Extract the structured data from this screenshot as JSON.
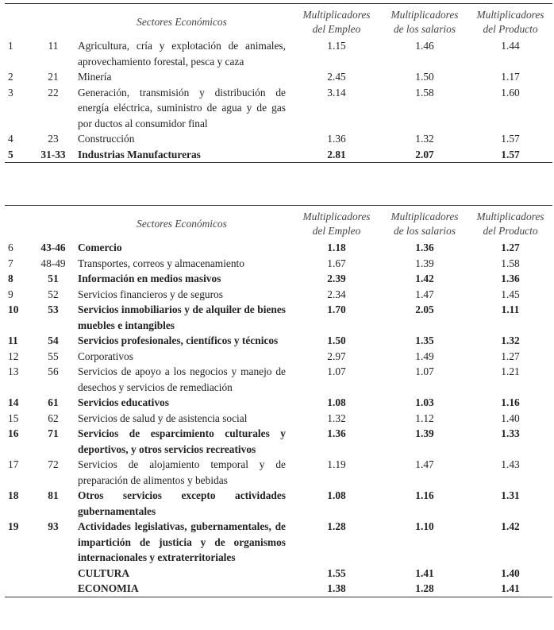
{
  "headers": {
    "sectores": "Sectores Económicos",
    "empleo": [
      "Multiplicadores",
      "del Empleo"
    ],
    "salarios": [
      "Multiplicadores",
      "de los salarios"
    ],
    "producto": [
      "Multiplicadores",
      "del Producto"
    ]
  },
  "table1": [
    {
      "num": "1",
      "code": "11",
      "desc": "Agricultura, cría y explotación de animales, aprovechamiento forestal, pesca y caza",
      "empleo": "1.15",
      "salarios": "1.46",
      "producto": "1.44",
      "bold": false
    },
    {
      "num": "2",
      "code": "21",
      "desc": "Minería",
      "empleo": "2.45",
      "salarios": "1.50",
      "producto": "1.17",
      "bold": false
    },
    {
      "num": "3",
      "code": "22",
      "desc": "Generación, transmisión y distribución de energía eléctrica, suministro de agua y de gas por ductos al consumidor final",
      "empleo": "3.14",
      "salarios": "1.58",
      "producto": "1.60",
      "bold": false
    },
    {
      "num": "4",
      "code": "23",
      "desc": "Construcción",
      "empleo": "1.36",
      "salarios": "1.32",
      "producto": "1.57",
      "bold": false
    },
    {
      "num": "5",
      "code": "31-33",
      "desc": "Industrias Manufactureras",
      "empleo": "2.81",
      "salarios": "2.07",
      "producto": "1.57",
      "bold": true
    }
  ],
  "table2": [
    {
      "num": "6",
      "code": "43-46",
      "desc": "Comercio",
      "empleo": "1.18",
      "salarios": "1.36",
      "producto": "1.27",
      "bold": true
    },
    {
      "num": "7",
      "code": "48-49",
      "desc": "Transportes, correos y almacenamiento",
      "empleo": "1.67",
      "salarios": "1.39",
      "producto": "1.58",
      "bold": false
    },
    {
      "num": "8",
      "code": "51",
      "desc": "Información en medios masivos",
      "empleo": "2.39",
      "salarios": "1.42",
      "producto": "1.36",
      "bold": true
    },
    {
      "num": "9",
      "code": "52",
      "desc": "Servicios financieros y de seguros",
      "empleo": "2.34",
      "salarios": "1.47",
      "producto": "1.45",
      "bold": false
    },
    {
      "num": "10",
      "code": "53",
      "desc": "Servicios inmobiliarios y de alquiler de bienes muebles e intangibles",
      "empleo": "1.70",
      "salarios": "2.05",
      "producto": "1.11",
      "bold": true
    },
    {
      "num": "11",
      "code": "54",
      "desc": "Servicios profesionales, científicos y técnicos",
      "empleo": "1.50",
      "salarios": "1.35",
      "producto": "1.32",
      "bold": true
    },
    {
      "num": "12",
      "code": "55",
      "desc": "Corporativos",
      "empleo": "2.97",
      "salarios": "1.49",
      "producto": "1.27",
      "bold": false
    },
    {
      "num": "13",
      "code": "56",
      "desc": "Servicios de apoyo a los negocios y manejo de desechos y servicios de remediación",
      "empleo": "1.07",
      "salarios": "1.07",
      "producto": "1.21",
      "bold": false
    },
    {
      "num": "14",
      "code": "61",
      "desc": "Servicios educativos",
      "empleo": "1.08",
      "salarios": "1.03",
      "producto": "1.16",
      "bold": true
    },
    {
      "num": "15",
      "code": "62",
      "desc": "Servicios de salud y de asistencia social",
      "empleo": "1.32",
      "salarios": "1.12",
      "producto": "1.40",
      "bold": false
    },
    {
      "num": "16",
      "code": "71",
      "desc": "Servicios de esparcimiento culturales y deportivos, y otros servicios recreativos",
      "empleo": "1.36",
      "salarios": "1.39",
      "producto": "1.33",
      "bold": true
    },
    {
      "num": "17",
      "code": "72",
      "desc": "Servicios de alojamiento temporal y de preparación de alimentos y bebidas",
      "empleo": "1.19",
      "salarios": "1.47",
      "producto": "1.43",
      "bold": false
    },
    {
      "num": "18",
      "code": "81",
      "desc": "Otros servicios excepto actividades gubernamentales",
      "empleo": "1.08",
      "salarios": "1.16",
      "producto": "1.31",
      "bold": true
    },
    {
      "num": "19",
      "code": "93",
      "desc": "Actividades legislativas, gubernamentales, de impartición de justicia y de organismos internacionales y extraterritoriales",
      "empleo": "1.28",
      "salarios": "1.10",
      "producto": "1.42",
      "bold": true
    },
    {
      "num": "",
      "code": "",
      "desc": "CULTURA",
      "empleo": "1.55",
      "salarios": "1.41",
      "producto": "1.40",
      "bold": true
    },
    {
      "num": "",
      "code": "",
      "desc": "ECONOMIA",
      "empleo": "1.38",
      "salarios": "1.28",
      "producto": "1.41",
      "bold": true
    }
  ]
}
